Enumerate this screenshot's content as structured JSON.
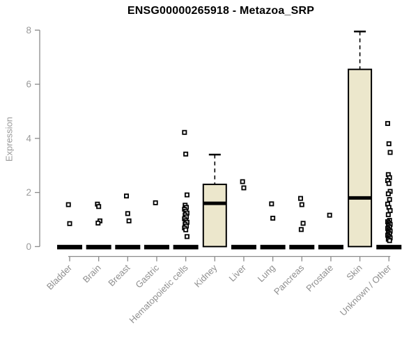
{
  "chart_data": {
    "type": "boxplot",
    "title": "ENSG00000265918 - Metazoa_SRP",
    "ylabel": "Expression",
    "xlabel": "",
    "ylim": [
      0,
      8
    ],
    "yticks": [
      0,
      2,
      4,
      6,
      8
    ],
    "grid": false,
    "legend": false,
    "box_fill_color": "#ece7cc",
    "box_border_color": "#000000",
    "axis_color": "#8a8a8a",
    "tick_label_color": "#9a9a9a",
    "title_color": "#000000",
    "categories": [
      "Bladder",
      "Brain",
      "Breast",
      "Gastric",
      "Hematopoietic cells",
      "Kidney",
      "Liver",
      "Lung",
      "Pancreas",
      "Prostate",
      "Skin",
      "Unknown / Other"
    ],
    "boxes": [
      {
        "category": "Bladder",
        "q1": 0,
        "median": 0,
        "q3": 0,
        "whisker_low": 0,
        "whisker_high": 0,
        "outliers": [
          1.55,
          0.85
        ]
      },
      {
        "category": "Brain",
        "q1": 0,
        "median": 0,
        "q3": 0,
        "whisker_low": 0,
        "whisker_high": 0,
        "outliers": [
          1.57,
          1.48,
          0.95,
          0.87
        ]
      },
      {
        "category": "Breast",
        "q1": 0,
        "median": 0,
        "q3": 0,
        "whisker_low": 0,
        "whisker_high": 0,
        "outliers": [
          1.87,
          1.22,
          0.95
        ]
      },
      {
        "category": "Gastric",
        "q1": 0,
        "median": 0,
        "q3": 0,
        "whisker_low": 0,
        "whisker_high": 0,
        "outliers": [
          1.62
        ]
      },
      {
        "category": "Hematopoietic cells",
        "q1": 0,
        "median": 0,
        "q3": 0,
        "whisker_low": 0,
        "whisker_high": 0,
        "outliers": [
          4.22,
          3.42,
          1.91,
          1.53,
          1.45,
          1.38,
          1.31,
          1.24,
          1.17,
          1.1,
          1.03,
          0.96,
          0.9,
          0.83,
          0.76,
          0.69,
          0.62,
          0.37
        ]
      },
      {
        "category": "Kidney",
        "q1": 0,
        "median": 1.6,
        "q3": 2.3,
        "whisker_low": 0,
        "whisker_high": 3.4,
        "outliers": []
      },
      {
        "category": "Liver",
        "q1": 0,
        "median": 0,
        "q3": 0,
        "whisker_low": 0,
        "whisker_high": 0,
        "outliers": [
          2.4,
          2.17
        ]
      },
      {
        "category": "Lung",
        "q1": 0,
        "median": 0,
        "q3": 0,
        "whisker_low": 0,
        "whisker_high": 0,
        "outliers": [
          1.58,
          1.05
        ]
      },
      {
        "category": "Pancreas",
        "q1": 0,
        "median": 0,
        "q3": 0,
        "whisker_low": 0,
        "whisker_high": 0,
        "outliers": [
          1.78,
          1.55,
          0.86,
          0.63
        ]
      },
      {
        "category": "Prostate",
        "q1": 0,
        "median": 0,
        "q3": 0,
        "whisker_low": 0,
        "whisker_high": 0,
        "outliers": [
          1.16
        ]
      },
      {
        "category": "Skin",
        "q1": 0,
        "median": 1.8,
        "q3": 6.55,
        "whisker_low": 0,
        "whisker_high": 7.95,
        "outliers": []
      },
      {
        "category": "Unknown / Other",
        "q1": 0,
        "median": 0,
        "q3": 0,
        "whisker_low": 0,
        "whisker_high": 0,
        "outliers": [
          4.55,
          3.8,
          3.48,
          2.66,
          2.55,
          2.44,
          2.33,
          2.04,
          1.95,
          1.74,
          1.57,
          1.45,
          1.33,
          1.18,
          0.97,
          0.92,
          0.87,
          0.82,
          0.77,
          0.72,
          0.67,
          0.62,
          0.57,
          0.52,
          0.47,
          0.42,
          0.37,
          0.32,
          0.27,
          0.22
        ]
      }
    ]
  }
}
